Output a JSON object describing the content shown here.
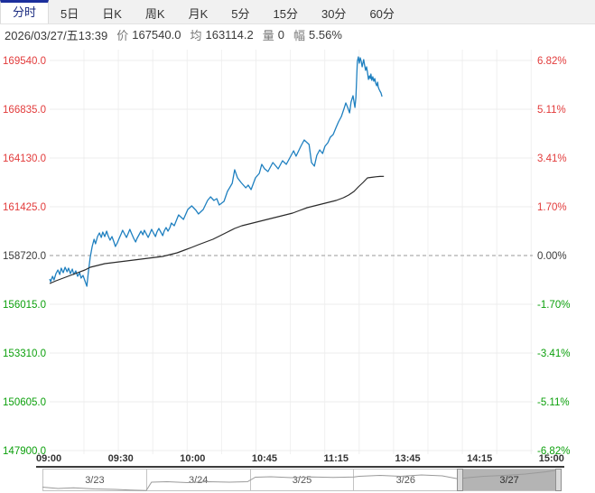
{
  "tabs": {
    "items": [
      {
        "label": "分时",
        "active": true
      },
      {
        "label": "5日",
        "active": false
      },
      {
        "label": "日K",
        "active": false
      },
      {
        "label": "周K",
        "active": false
      },
      {
        "label": "月K",
        "active": false
      },
      {
        "label": "5分",
        "active": false
      },
      {
        "label": "15分",
        "active": false
      },
      {
        "label": "30分",
        "active": false
      },
      {
        "label": "60分",
        "active": false
      }
    ]
  },
  "info": {
    "datetime": "2026/03/27/五13:39",
    "price_label": "价",
    "price": "167540.0",
    "avg_label": "均",
    "avg": "163114.2",
    "volume_label": "量",
    "volume": "0",
    "range_label": "幅",
    "range": "5.56%"
  },
  "chart_data": {
    "type": "line",
    "title": "分时",
    "x_axis": {
      "labels": [
        "09:00",
        "09:30",
        "10:00",
        "10:45",
        "11:15",
        "13:45",
        "14:15",
        "15:00"
      ]
    },
    "y_axis_left": {
      "labels": [
        "169540.0",
        "166835.0",
        "164130.0",
        "161425.0",
        "158720.0",
        "156015.0",
        "153310.0",
        "150605.0",
        "147900.0"
      ],
      "baseline_index": 4
    },
    "y_axis_right": {
      "labels": [
        "6.82%",
        "5.11%",
        "3.41%",
        "1.70%",
        "0.00%",
        "-1.70%",
        "-3.41%",
        "-5.11%",
        "-6.82%"
      ],
      "baseline_index": 4
    },
    "baseline_price": 158720.0,
    "price_per_gridstep": 2705,
    "grid": {
      "v_count": 14
    },
    "series": [
      {
        "name": "价",
        "color": "#1f80c0",
        "points": [
          [
            0.0,
            157418
          ],
          [
            0.002,
            157267
          ],
          [
            0.006,
            157568
          ],
          [
            0.009,
            157368
          ],
          [
            0.013,
            157718
          ],
          [
            0.017,
            157918
          ],
          [
            0.021,
            157668
          ],
          [
            0.024,
            158019
          ],
          [
            0.028,
            157768
          ],
          [
            0.032,
            158069
          ],
          [
            0.036,
            157818
          ],
          [
            0.039,
            158019
          ],
          [
            0.043,
            157718
          ],
          [
            0.047,
            157969
          ],
          [
            0.05,
            157668
          ],
          [
            0.054,
            157868
          ],
          [
            0.058,
            157568
          ],
          [
            0.062,
            157768
          ],
          [
            0.065,
            157468
          ],
          [
            0.069,
            157618
          ],
          [
            0.073,
            157317
          ],
          [
            0.077,
            157017
          ],
          [
            0.08,
            157768
          ],
          [
            0.084,
            158620
          ],
          [
            0.088,
            159221
          ],
          [
            0.092,
            159622
          ],
          [
            0.095,
            159371
          ],
          [
            0.099,
            159772
          ],
          [
            0.103,
            159972
          ],
          [
            0.107,
            159722
          ],
          [
            0.11,
            160022
          ],
          [
            0.114,
            159772
          ],
          [
            0.118,
            160072
          ],
          [
            0.121,
            159822
          ],
          [
            0.125,
            159572
          ],
          [
            0.129,
            159772
          ],
          [
            0.133,
            159471
          ],
          [
            0.136,
            159221
          ],
          [
            0.14,
            159421
          ],
          [
            0.144,
            159672
          ],
          [
            0.148,
            159922
          ],
          [
            0.151,
            160123
          ],
          [
            0.155,
            159922
          ],
          [
            0.159,
            159722
          ],
          [
            0.163,
            159972
          ],
          [
            0.166,
            160173
          ],
          [
            0.17,
            159922
          ],
          [
            0.174,
            159672
          ],
          [
            0.178,
            159471
          ],
          [
            0.181,
            159672
          ],
          [
            0.185,
            159872
          ],
          [
            0.189,
            160072
          ],
          [
            0.193,
            159872
          ],
          [
            0.196,
            160123
          ],
          [
            0.2,
            159922
          ],
          [
            0.204,
            159722
          ],
          [
            0.208,
            159972
          ],
          [
            0.211,
            160173
          ],
          [
            0.215,
            159972
          ],
          [
            0.219,
            159772
          ],
          [
            0.222,
            160022
          ],
          [
            0.226,
            160223
          ],
          [
            0.23,
            160022
          ],
          [
            0.234,
            159822
          ],
          [
            0.237,
            160072
          ],
          [
            0.241,
            160273
          ],
          [
            0.245,
            160072
          ],
          [
            0.249,
            160273
          ],
          [
            0.252,
            160523
          ],
          [
            0.258,
            160373
          ],
          [
            0.267,
            160974
          ],
          [
            0.277,
            160724
          ],
          [
            0.286,
            161275
          ],
          [
            0.294,
            161475
          ],
          [
            0.303,
            161225
          ],
          [
            0.308,
            161024
          ],
          [
            0.318,
            161275
          ],
          [
            0.327,
            161776
          ],
          [
            0.333,
            161976
          ],
          [
            0.34,
            161776
          ],
          [
            0.346,
            161876
          ],
          [
            0.351,
            161525
          ],
          [
            0.361,
            161725
          ],
          [
            0.368,
            162276
          ],
          [
            0.378,
            162727
          ],
          [
            0.383,
            163479
          ],
          [
            0.389,
            163028
          ],
          [
            0.396,
            162777
          ],
          [
            0.406,
            162477
          ],
          [
            0.411,
            162627
          ],
          [
            0.417,
            162377
          ],
          [
            0.426,
            163028
          ],
          [
            0.434,
            163278
          ],
          [
            0.439,
            163779
          ],
          [
            0.445,
            163529
          ],
          [
            0.452,
            163379
          ],
          [
            0.462,
            163879
          ],
          [
            0.467,
            163729
          ],
          [
            0.473,
            163529
          ],
          [
            0.482,
            163979
          ],
          [
            0.49,
            163779
          ],
          [
            0.495,
            164030
          ],
          [
            0.505,
            164530
          ],
          [
            0.51,
            164230
          ],
          [
            0.52,
            164781
          ],
          [
            0.527,
            165132
          ],
          [
            0.537,
            164881
          ],
          [
            0.542,
            163879
          ],
          [
            0.548,
            163679
          ],
          [
            0.553,
            164280
          ],
          [
            0.559,
            164580
          ],
          [
            0.565,
            164380
          ],
          [
            0.57,
            164781
          ],
          [
            0.576,
            164981
          ],
          [
            0.581,
            165282
          ],
          [
            0.587,
            165432
          ],
          [
            0.593,
            165833
          ],
          [
            0.598,
            166134
          ],
          [
            0.604,
            166434
          ],
          [
            0.609,
            166835
          ],
          [
            0.613,
            167186
          ],
          [
            0.617,
            166935
          ],
          [
            0.621,
            166635
          ],
          [
            0.624,
            167236
          ],
          [
            0.628,
            167587
          ],
          [
            0.632,
            166935
          ],
          [
            0.634,
            167486
          ],
          [
            0.636,
            168889
          ],
          [
            0.637,
            169490
          ],
          [
            0.639,
            169740
          ],
          [
            0.641,
            169389
          ],
          [
            0.643,
            169690
          ],
          [
            0.645,
            169490
          ],
          [
            0.647,
            169189
          ],
          [
            0.65,
            169590
          ],
          [
            0.652,
            169290
          ],
          [
            0.654,
            168989
          ],
          [
            0.656,
            169189
          ],
          [
            0.658,
            168889
          ],
          [
            0.66,
            168488
          ],
          [
            0.662,
            168688
          ],
          [
            0.664,
            168538
          ],
          [
            0.665,
            168788
          ],
          [
            0.667,
            168438
          ],
          [
            0.669,
            168638
          ],
          [
            0.671,
            168387
          ],
          [
            0.673,
            168538
          ],
          [
            0.675,
            168287
          ],
          [
            0.677,
            168137
          ],
          [
            0.679,
            168337
          ],
          [
            0.68,
            168087
          ],
          [
            0.682,
            167937
          ],
          [
            0.684,
            167837
          ],
          [
            0.686,
            167737
          ],
          [
            0.688,
            167540
          ]
        ]
      },
      {
        "name": "均",
        "color": "#2a2a2a",
        "points": [
          [
            0.0,
            157167
          ],
          [
            0.013,
            157317
          ],
          [
            0.028,
            157468
          ],
          [
            0.043,
            157618
          ],
          [
            0.058,
            157768
          ],
          [
            0.073,
            157918
          ],
          [
            0.084,
            158069
          ],
          [
            0.099,
            158169
          ],
          [
            0.114,
            158269
          ],
          [
            0.129,
            158319
          ],
          [
            0.144,
            158369
          ],
          [
            0.159,
            158419
          ],
          [
            0.174,
            158470
          ],
          [
            0.189,
            158520
          ],
          [
            0.204,
            158570
          ],
          [
            0.219,
            158620
          ],
          [
            0.234,
            158670
          ],
          [
            0.249,
            158770
          ],
          [
            0.264,
            158870
          ],
          [
            0.279,
            159021
          ],
          [
            0.294,
            159171
          ],
          [
            0.308,
            159321
          ],
          [
            0.323,
            159471
          ],
          [
            0.338,
            159622
          ],
          [
            0.353,
            159822
          ],
          [
            0.368,
            160022
          ],
          [
            0.383,
            160223
          ],
          [
            0.398,
            160373
          ],
          [
            0.413,
            160473
          ],
          [
            0.428,
            160573
          ],
          [
            0.443,
            160674
          ],
          [
            0.458,
            160774
          ],
          [
            0.473,
            160874
          ],
          [
            0.488,
            160974
          ],
          [
            0.503,
            161074
          ],
          [
            0.518,
            161225
          ],
          [
            0.533,
            161375
          ],
          [
            0.548,
            161475
          ],
          [
            0.563,
            161575
          ],
          [
            0.578,
            161676
          ],
          [
            0.593,
            161776
          ],
          [
            0.608,
            161926
          ],
          [
            0.619,
            162076
          ],
          [
            0.63,
            162276
          ],
          [
            0.639,
            162527
          ],
          [
            0.649,
            162777
          ],
          [
            0.658,
            163028
          ],
          [
            0.667,
            163060
          ],
          [
            0.677,
            163095
          ],
          [
            0.684,
            163110
          ],
          [
            0.692,
            163114
          ]
        ]
      }
    ]
  },
  "navigator": {
    "dates": [
      "3/23",
      "3/24",
      "3/25",
      "3/26",
      "3/27"
    ],
    "selected_index": 4,
    "sparkline": [
      [
        0.0,
        0.18
      ],
      [
        0.03,
        0.12
      ],
      [
        0.06,
        0.15
      ],
      [
        0.1,
        0.1
      ],
      [
        0.14,
        0.08
      ],
      [
        0.17,
        0.05
      ],
      [
        0.2,
        0.03
      ],
      [
        0.21,
        0.4
      ],
      [
        0.24,
        0.42
      ],
      [
        0.28,
        0.38
      ],
      [
        0.32,
        0.42
      ],
      [
        0.36,
        0.4
      ],
      [
        0.395,
        0.42
      ],
      [
        0.41,
        0.62
      ],
      [
        0.44,
        0.64
      ],
      [
        0.48,
        0.6
      ],
      [
        0.52,
        0.63
      ],
      [
        0.56,
        0.61
      ],
      [
        0.6,
        0.63
      ],
      [
        0.61,
        0.66
      ],
      [
        0.65,
        0.7
      ],
      [
        0.69,
        0.66
      ],
      [
        0.73,
        0.72
      ],
      [
        0.77,
        0.68
      ],
      [
        0.8,
        0.55
      ],
      [
        0.82,
        0.6
      ],
      [
        0.85,
        0.66
      ],
      [
        0.89,
        0.7
      ],
      [
        0.93,
        0.76
      ],
      [
        0.97,
        0.86
      ],
      [
        1.0,
        0.97
      ]
    ]
  },
  "colors": {
    "up": "#e23b3b",
    "down": "#0ca00c",
    "neutral": "#3a3a3a",
    "price_line": "#1f80c0",
    "avg_line": "#2a2a2a",
    "tab_active_accent": "#1c2f9c",
    "grid": "#ececec",
    "vgrid": "#f0f0f0",
    "baseline_dash": "#9a9a9a",
    "nav_selected": "#b4b4b4",
    "spark": "#9a9a9a"
  }
}
